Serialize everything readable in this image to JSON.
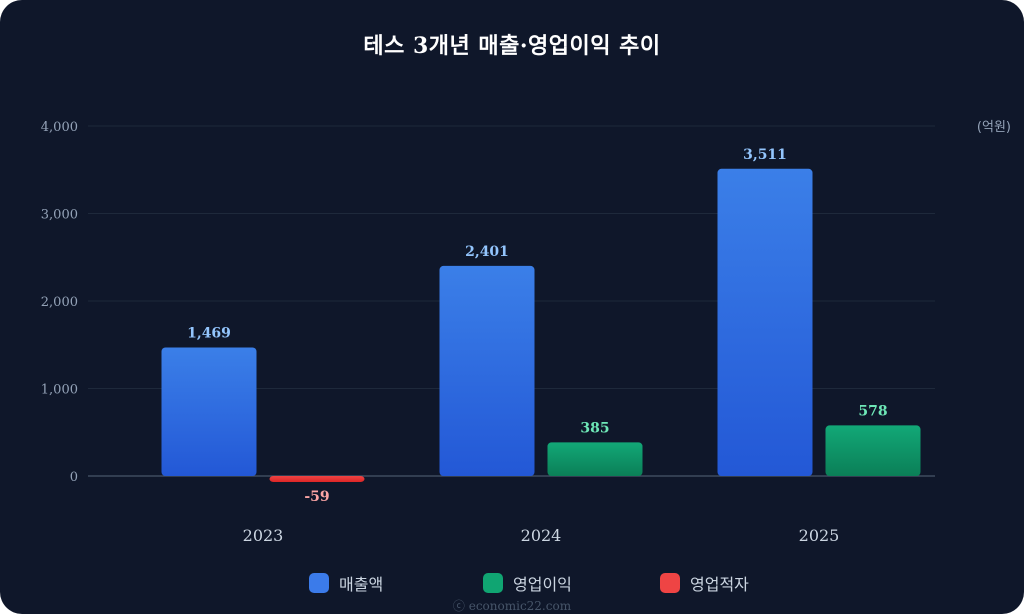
{
  "chart_data": {
    "type": "bar",
    "title": "테스 3개년 매출·영업이익 추이",
    "unit": "(억원)",
    "categories": [
      "2023",
      "2024",
      "2025"
    ],
    "series": [
      {
        "name": "매출액",
        "values": [
          1469,
          2401,
          3511
        ],
        "labels": [
          "1,469",
          "2,401",
          "3,511"
        ],
        "color": "#3b7bea",
        "label_color": "#93c5fd"
      },
      {
        "name": "영업이익",
        "values": [
          null,
          385,
          578
        ],
        "labels": [
          "",
          "385",
          "578"
        ],
        "color": "#10a572",
        "label_color": "#6ee7b7"
      },
      {
        "name": "영업적자",
        "values": [
          -59,
          null,
          null
        ],
        "labels": [
          "-59",
          "",
          ""
        ],
        "color": "#ef4444",
        "label_color": "#fca5a5"
      }
    ],
    "ylim": [
      0,
      4000
    ],
    "yticks": [
      "0",
      "1,000",
      "2,000",
      "3,000",
      "4,000"
    ],
    "grid": true,
    "legend": "bottom"
  },
  "credit": "ⓒ economic22.com"
}
